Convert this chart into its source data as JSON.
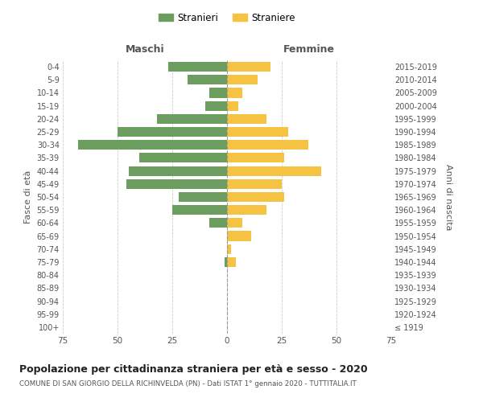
{
  "age_groups": [
    "100+",
    "95-99",
    "90-94",
    "85-89",
    "80-84",
    "75-79",
    "70-74",
    "65-69",
    "60-64",
    "55-59",
    "50-54",
    "45-49",
    "40-44",
    "35-39",
    "30-34",
    "25-29",
    "20-24",
    "15-19",
    "10-14",
    "5-9",
    "0-4"
  ],
  "birth_years": [
    "≤ 1919",
    "1920-1924",
    "1925-1929",
    "1930-1934",
    "1935-1939",
    "1940-1944",
    "1945-1949",
    "1950-1954",
    "1955-1959",
    "1960-1964",
    "1965-1969",
    "1970-1974",
    "1975-1979",
    "1980-1984",
    "1985-1989",
    "1990-1994",
    "1995-1999",
    "2000-2004",
    "2005-2009",
    "2010-2014",
    "2015-2019"
  ],
  "maschi": [
    0,
    0,
    0,
    0,
    0,
    1,
    0,
    0,
    8,
    25,
    22,
    46,
    45,
    40,
    68,
    50,
    32,
    10,
    8,
    18,
    27
  ],
  "femmine": [
    0,
    0,
    0,
    0,
    0,
    4,
    2,
    11,
    7,
    18,
    26,
    25,
    43,
    26,
    37,
    28,
    18,
    5,
    7,
    14,
    20
  ],
  "color_maschi": "#6b9e5e",
  "color_femmine": "#f5c242",
  "title": "Popolazione per cittadinanza straniera per età e sesso - 2020",
  "subtitle": "COMUNE DI SAN GIORGIO DELLA RICHINVELDA (PN) - Dati ISTAT 1° gennaio 2020 - TUTTITALIA.IT",
  "xlabel_left": "Maschi",
  "xlabel_right": "Femmine",
  "ylabel_left": "Fasce di età",
  "ylabel_right": "Anni di nascita",
  "legend_maschi": "Stranieri",
  "legend_femmine": "Straniere",
  "xlim": 75,
  "background_color": "#ffffff",
  "grid_color": "#cccccc"
}
